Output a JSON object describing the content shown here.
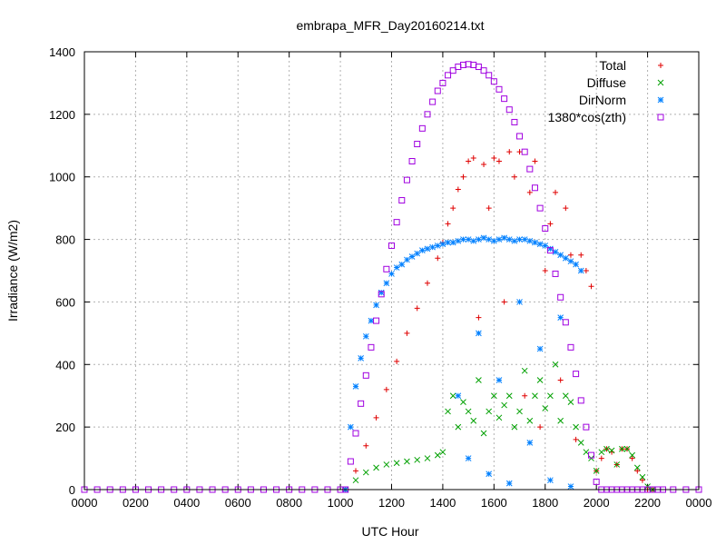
{
  "chart_data": {
    "type": "scatter",
    "title": "embrapa_MFR_Day20160214.txt",
    "xlabel": "UTC Hour",
    "ylabel": "Irradiance (W/m2)",
    "xlim": [
      0,
      24
    ],
    "ylim": [
      0,
      1400
    ],
    "x_ticks": [
      {
        "v": 0,
        "label": "0000"
      },
      {
        "v": 2,
        "label": "0200"
      },
      {
        "v": 4,
        "label": "0400"
      },
      {
        "v": 6,
        "label": "0600"
      },
      {
        "v": 8,
        "label": "0800"
      },
      {
        "v": 10,
        "label": "1000"
      },
      {
        "v": 12,
        "label": "1200"
      },
      {
        "v": 14,
        "label": "1400"
      },
      {
        "v": 16,
        "label": "1600"
      },
      {
        "v": 18,
        "label": "1800"
      },
      {
        "v": 20,
        "label": "2000"
      },
      {
        "v": 22,
        "label": "2200"
      },
      {
        "v": 24,
        "label": "0000"
      }
    ],
    "y_ticks": [
      {
        "v": 0,
        "label": "0"
      },
      {
        "v": 200,
        "label": "200"
      },
      {
        "v": 400,
        "label": "400"
      },
      {
        "v": 600,
        "label": "600"
      },
      {
        "v": 800,
        "label": "800"
      },
      {
        "v": 1000,
        "label": "1000"
      },
      {
        "v": 1200,
        "label": "1200"
      },
      {
        "v": 1400,
        "label": "1400"
      }
    ],
    "grid": true,
    "legend_position": "top-right",
    "series": [
      {
        "name": "Total",
        "marker": "plus",
        "color": "#e00000",
        "x": [
          10.2,
          10.6,
          11.0,
          11.4,
          11.8,
          12.2,
          12.6,
          13.0,
          13.4,
          13.8,
          14.0,
          14.2,
          14.4,
          14.6,
          14.8,
          15.0,
          15.2,
          15.4,
          15.6,
          15.8,
          16.0,
          16.2,
          16.4,
          16.6,
          16.8,
          17.0,
          17.2,
          17.4,
          17.6,
          17.8,
          18.0,
          18.2,
          18.4,
          18.6,
          18.8,
          19.0,
          19.2,
          19.4,
          19.6,
          19.8,
          20.0,
          20.2,
          20.4,
          20.6,
          20.8,
          21.0,
          21.2,
          21.4,
          21.6,
          21.8,
          22.0,
          22.2
        ],
        "y": [
          0,
          60,
          140,
          230,
          320,
          410,
          500,
          580,
          660,
          740,
          790,
          850,
          900,
          960,
          1000,
          1050,
          1060,
          550,
          1040,
          900,
          1060,
          1050,
          600,
          1080,
          1000,
          1080,
          300,
          950,
          1050,
          200,
          700,
          850,
          950,
          350,
          900,
          750,
          160,
          750,
          700,
          650,
          60,
          100,
          130,
          120,
          80,
          130,
          130,
          100,
          60,
          30,
          0,
          0
        ]
      },
      {
        "name": "Diffuse",
        "marker": "cross",
        "color": "#00a000",
        "x": [
          10.2,
          10.6,
          11.0,
          11.4,
          11.8,
          12.2,
          12.6,
          13.0,
          13.4,
          13.8,
          14.0,
          14.2,
          14.4,
          14.6,
          14.8,
          15.0,
          15.2,
          15.4,
          15.6,
          15.8,
          16.0,
          16.2,
          16.4,
          16.6,
          16.8,
          17.0,
          17.2,
          17.4,
          17.6,
          17.8,
          18.0,
          18.2,
          18.4,
          18.6,
          18.8,
          19.0,
          19.2,
          19.4,
          19.6,
          19.8,
          20.0,
          20.2,
          20.4,
          20.6,
          20.8,
          21.0,
          21.2,
          21.4,
          21.6,
          21.8,
          22.0,
          22.2
        ],
        "y": [
          0,
          30,
          55,
          70,
          80,
          85,
          90,
          95,
          100,
          110,
          120,
          250,
          300,
          200,
          280,
          250,
          220,
          350,
          180,
          250,
          300,
          230,
          270,
          300,
          200,
          250,
          380,
          220,
          300,
          350,
          260,
          300,
          400,
          220,
          300,
          280,
          200,
          150,
          120,
          100,
          60,
          120,
          130,
          125,
          80,
          130,
          130,
          110,
          70,
          40,
          10,
          0
        ]
      },
      {
        "name": "DirNorm",
        "marker": "star",
        "color": "#0080ff",
        "x": [
          10.2,
          10.4,
          10.6,
          10.8,
          11.0,
          11.2,
          11.4,
          11.6,
          11.8,
          12.0,
          12.2,
          12.4,
          12.6,
          12.8,
          13.0,
          13.2,
          13.4,
          13.6,
          13.8,
          14.0,
          14.2,
          14.4,
          14.6,
          14.8,
          15.0,
          15.2,
          15.4,
          15.6,
          15.8,
          16.0,
          16.2,
          16.4,
          16.6,
          16.8,
          17.0,
          17.2,
          17.4,
          17.6,
          17.8,
          18.0,
          18.2,
          18.4,
          18.6,
          18.8,
          19.0,
          19.2,
          19.4,
          14.6,
          15.0,
          15.4,
          15.8,
          16.2,
          16.6,
          17.0,
          17.4,
          17.8,
          18.2,
          18.6,
          19.0
        ],
        "y": [
          0,
          200,
          330,
          420,
          490,
          540,
          590,
          630,
          660,
          690,
          710,
          720,
          735,
          745,
          755,
          765,
          770,
          775,
          780,
          785,
          790,
          790,
          795,
          800,
          800,
          795,
          800,
          805,
          800,
          795,
          800,
          805,
          800,
          795,
          800,
          800,
          795,
          790,
          785,
          780,
          770,
          760,
          750,
          740,
          730,
          720,
          700,
          300,
          100,
          500,
          50,
          350,
          20,
          600,
          150,
          450,
          30,
          550,
          10
        ]
      },
      {
        "name": "1380*cos(zth)",
        "marker": "square",
        "color": "#a000e0",
        "x": [
          0,
          0.5,
          1,
          1.5,
          2,
          2.5,
          3,
          3.5,
          4,
          4.5,
          5,
          5.5,
          6,
          6.5,
          7,
          7.5,
          8,
          8.5,
          9,
          9.5,
          10,
          10.2,
          10.4,
          10.6,
          10.8,
          11.0,
          11.2,
          11.4,
          11.6,
          11.8,
          12.0,
          12.2,
          12.4,
          12.6,
          12.8,
          13.0,
          13.2,
          13.4,
          13.6,
          13.8,
          14.0,
          14.2,
          14.4,
          14.6,
          14.8,
          15.0,
          15.2,
          15.4,
          15.6,
          15.8,
          16.0,
          16.2,
          16.4,
          16.6,
          16.8,
          17.0,
          17.2,
          17.4,
          17.6,
          17.8,
          18.0,
          18.2,
          18.4,
          18.6,
          18.8,
          19.0,
          19.2,
          19.4,
          19.6,
          19.8,
          20.0,
          20.2,
          20.4,
          20.6,
          20.8,
          21.0,
          21.2,
          21.4,
          21.6,
          21.8,
          22.0,
          22.2,
          22.4,
          22.6,
          23,
          23.5,
          24
        ],
        "y": [
          0,
          0,
          0,
          0,
          0,
          0,
          0,
          0,
          0,
          0,
          0,
          0,
          0,
          0,
          0,
          0,
          0,
          0,
          0,
          0,
          0,
          0,
          90,
          180,
          275,
          365,
          455,
          540,
          625,
          705,
          780,
          855,
          925,
          990,
          1050,
          1105,
          1155,
          1200,
          1240,
          1275,
          1300,
          1325,
          1340,
          1352,
          1358,
          1360,
          1358,
          1352,
          1340,
          1325,
          1305,
          1280,
          1250,
          1215,
          1175,
          1130,
          1080,
          1025,
          965,
          900,
          835,
          765,
          690,
          615,
          535,
          455,
          370,
          285,
          200,
          110,
          25,
          0,
          0,
          0,
          0,
          0,
          0,
          0,
          0,
          0,
          0,
          0,
          0,
          0,
          0,
          0,
          0
        ]
      }
    ]
  }
}
